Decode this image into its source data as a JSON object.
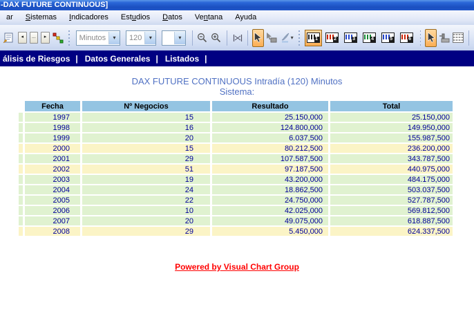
{
  "window": {
    "title": "-DAX FUTURE CONTINUOUS]"
  },
  "menubar": {
    "items": [
      {
        "label": "ar",
        "mnemonic": -1
      },
      {
        "label": "Sistemas",
        "mnemonic": 0
      },
      {
        "label": "Indicadores",
        "mnemonic": 0
      },
      {
        "label": "Estudios",
        "mnemonic": 3
      },
      {
        "label": "Datos",
        "mnemonic": 0
      },
      {
        "label": "Ventana",
        "mnemonic": 2
      },
      {
        "label": "Ayuda",
        "mnemonic": -1
      }
    ]
  },
  "toolbar": {
    "nav_buttons": {
      "prev_glyph": "◂",
      "ellipsis": "...",
      "next_glyph": "▸"
    },
    "period_combo": {
      "value": "Minutos",
      "disabled": true
    },
    "compression_combo": {
      "value": "120",
      "disabled": true
    },
    "extra_combo": {
      "value": "",
      "disabled": true
    },
    "window_buttons": [
      {
        "num": "1",
        "active": true,
        "accent": "#222222"
      },
      {
        "num": "2",
        "active": false,
        "accent": "#cc2200"
      },
      {
        "num": "3",
        "active": false,
        "accent": "#2244cc"
      },
      {
        "num": "4",
        "active": false,
        "accent": "#118833"
      },
      {
        "num": "5",
        "active": false,
        "accent": "#2244cc"
      },
      {
        "num": "6",
        "active": false,
        "accent": "#cc2200"
      }
    ]
  },
  "icons": {
    "caret_glyph": "▾"
  },
  "navbar": {
    "items": [
      "álisis de Riesgos",
      "Datos Generales",
      "Listados"
    ],
    "separator": "|"
  },
  "report": {
    "title_line1": "DAX FUTURE CONTINUOUS Intradía (120) Minutos",
    "title_line2": "Sistema:",
    "table": {
      "headers": [
        "Fecha",
        "Nº Negocios",
        "Resultado",
        "Total"
      ],
      "rows": [
        {
          "fecha": "1997",
          "negocios": "15",
          "resultado": "25.150,000",
          "total": "25.150,000",
          "highlight": false
        },
        {
          "fecha": "1998",
          "negocios": "16",
          "resultado": "124.800,000",
          "total": "149.950,000",
          "highlight": false
        },
        {
          "fecha": "1999",
          "negocios": "20",
          "resultado": "6.037,500",
          "total": "155.987,500",
          "highlight": false
        },
        {
          "fecha": "2000",
          "negocios": "15",
          "resultado": "80.212,500",
          "total": "236.200,000",
          "highlight": true
        },
        {
          "fecha": "2001",
          "negocios": "29",
          "resultado": "107.587,500",
          "total": "343.787,500",
          "highlight": false
        },
        {
          "fecha": "2002",
          "negocios": "51",
          "resultado": "97.187,500",
          "total": "440.975,000",
          "highlight": true
        },
        {
          "fecha": "2003",
          "negocios": "19",
          "resultado": "43.200,000",
          "total": "484.175,000",
          "highlight": false
        },
        {
          "fecha": "2004",
          "negocios": "24",
          "resultado": "18.862,500",
          "total": "503.037,500",
          "highlight": false
        },
        {
          "fecha": "2005",
          "negocios": "22",
          "resultado": "24.750,000",
          "total": "527.787,500",
          "highlight": false
        },
        {
          "fecha": "2006",
          "negocios": "10",
          "resultado": "42.025,000",
          "total": "569.812,500",
          "highlight": false
        },
        {
          "fecha": "2007",
          "negocios": "20",
          "resultado": "49.075,000",
          "total": "618.887,500",
          "highlight": false
        },
        {
          "fecha": "2008",
          "negocios": "29",
          "resultado": "5.450,000",
          "total": "624.337,500",
          "highlight": true
        }
      ]
    },
    "footer_link": "Powered by Visual Chart Group"
  },
  "colors": {
    "navbar_bg": "#000082",
    "header_bg": "#94c4e2",
    "row_green": "#e0f2d0",
    "row_yellow": "#fbf4c6",
    "cell_text": "#000099",
    "title_text": "#5071c3",
    "link": "#ff0000",
    "active_button": "#fcae54"
  }
}
